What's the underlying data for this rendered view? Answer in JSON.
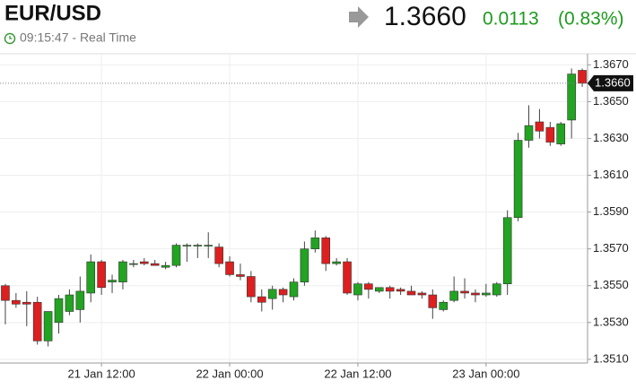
{
  "header": {
    "symbol": "EUR/USD",
    "time": "09:15:47 - Real Time",
    "price": "1.3660",
    "change": "0.0113",
    "change_percent": "(0.83%)"
  },
  "chart_data": {
    "type": "candlestick",
    "categories": [
      null,
      null,
      null,
      null,
      null,
      null,
      null,
      null,
      null,
      "21 Jan 12:00",
      null,
      null,
      null,
      null,
      null,
      null,
      null,
      null,
      null,
      null,
      null,
      "22 Jan 00:00",
      null,
      null,
      null,
      null,
      null,
      null,
      null,
      null,
      null,
      null,
      null,
      "22 Jan 12:00",
      null,
      null,
      null,
      null,
      null,
      null,
      null,
      null,
      null,
      null,
      null,
      "23 Jan 00:00",
      null,
      null,
      null,
      null,
      null,
      null,
      null,
      null,
      null
    ],
    "open": [
      1.355,
      1.3542,
      1.3541,
      1.3541,
      1.352,
      1.353,
      1.3536,
      1.3537,
      1.3546,
      1.3563,
      1.3552,
      1.3552,
      1.3562,
      1.3563,
      1.3562,
      1.356,
      1.3561,
      1.3572,
      1.3572,
      1.3572,
      1.3571,
      1.3563,
      1.3556,
      1.3555,
      1.3544,
      1.3543,
      1.3548,
      1.3544,
      1.3552,
      1.357,
      1.3576,
      1.3562,
      1.3563,
      1.3545,
      1.3551,
      1.3547,
      1.3549,
      1.3548,
      1.3547,
      1.3546,
      1.3545,
      1.3537,
      1.3542,
      1.3547,
      1.3546,
      1.3545,
      1.3545,
      1.3551,
      1.3587,
      1.3629,
      1.3639,
      1.3636,
      1.3627,
      1.364,
      1.3667
    ],
    "high": [
      1.3551,
      1.3546,
      1.3547,
      1.3544,
      1.3535,
      1.3545,
      1.3548,
      1.3555,
      1.3567,
      1.3564,
      1.3556,
      1.3564,
      1.3564,
      1.3565,
      1.3564,
      1.3563,
      1.3573,
      1.3573,
      1.3573,
      1.3579,
      1.3573,
      1.3566,
      1.3562,
      1.3558,
      1.3548,
      1.355,
      1.3549,
      1.3554,
      1.3574,
      1.358,
      1.3577,
      1.3565,
      1.3565,
      1.3552,
      1.3552,
      1.3549,
      1.355,
      1.3549,
      1.355,
      1.3547,
      1.3548,
      1.3542,
      1.3555,
      1.3554,
      1.3548,
      1.3551,
      1.3552,
      1.3591,
      1.3633,
      1.3648,
      1.3646,
      1.3639,
      1.3639,
      1.3668,
      1.3668
    ],
    "low": [
      1.3529,
      1.3538,
      1.3528,
      1.3518,
      1.3517,
      1.3524,
      1.3534,
      1.353,
      1.3541,
      1.3545,
      1.3546,
      1.3548,
      1.356,
      1.3561,
      1.3561,
      1.3559,
      1.356,
      1.3563,
      1.3565,
      1.3565,
      1.356,
      1.3555,
      1.3553,
      1.3541,
      1.3536,
      1.3537,
      1.3541,
      1.3542,
      1.355,
      1.3568,
      1.3558,
      1.3561,
      1.3545,
      1.3542,
      1.3543,
      1.3546,
      1.3543,
      1.3545,
      1.3545,
      1.3543,
      1.3532,
      1.3536,
      1.3541,
      1.3543,
      1.3541,
      1.3544,
      1.3544,
      1.3545,
      1.3585,
      1.3625,
      1.363,
      1.3626,
      1.3626,
      1.363,
      1.3658
    ],
    "close": [
      1.3542,
      1.354,
      1.354,
      1.352,
      1.3536,
      1.3543,
      1.3545,
      1.3547,
      1.3563,
      1.3549,
      1.3553,
      1.3563,
      1.3562,
      1.3562,
      1.3561,
      1.3561,
      1.3572,
      1.3572,
      1.3572,
      1.3572,
      1.3562,
      1.3556,
      1.3555,
      1.3544,
      1.3541,
      1.3548,
      1.3545,
      1.3552,
      1.357,
      1.3576,
      1.3562,
      1.3563,
      1.3546,
      1.3551,
      1.3548,
      1.3549,
      1.3547,
      1.3547,
      1.3545,
      1.3545,
      1.3538,
      1.3541,
      1.3547,
      1.3546,
      1.3545,
      1.3546,
      1.3551,
      1.3587,
      1.3629,
      1.3637,
      1.3634,
      1.3628,
      1.3638,
      1.3665,
      1.366
    ],
    "up_color": "#22a322",
    "down_color": "#dd1f1f",
    "ylim": [
      1.3508,
      1.3676
    ],
    "yticks": [
      {
        "value": 1.367,
        "label": "1.3670"
      },
      {
        "value": 1.365,
        "label": "1.3650"
      },
      {
        "value": 1.363,
        "label": "1.3630"
      },
      {
        "value": 1.361,
        "label": "1.3610"
      },
      {
        "value": 1.359,
        "label": "1.3590"
      },
      {
        "value": 1.357,
        "label": "1.3570"
      },
      {
        "value": 1.355,
        "label": "1.3550"
      },
      {
        "value": 1.353,
        "label": "1.3530"
      },
      {
        "value": 1.351,
        "label": "1.3510"
      }
    ],
    "last_price": {
      "value": 1.366,
      "label": "1.3660"
    },
    "grid": true
  }
}
